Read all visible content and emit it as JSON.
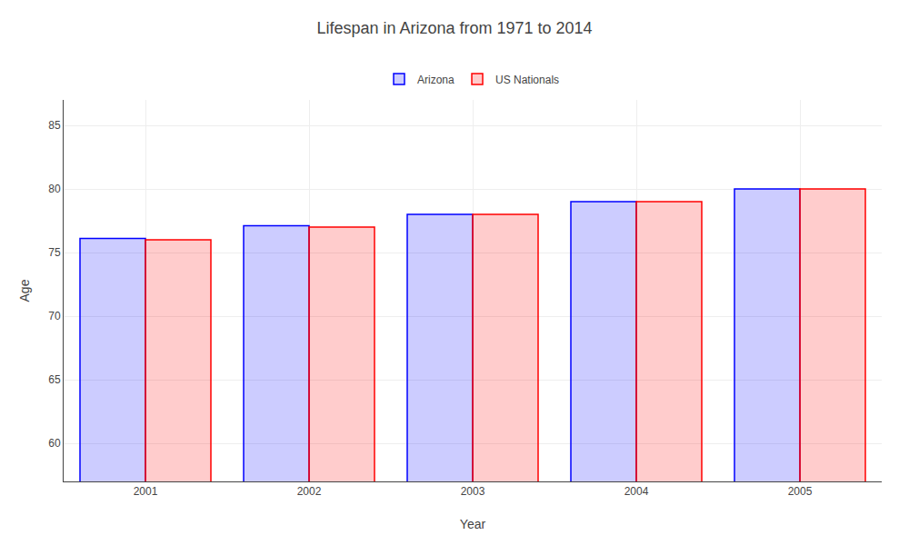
{
  "chart_data": {
    "type": "bar",
    "title": "Lifespan in Arizona from 1971 to 2014",
    "x_label": "Year",
    "y_label": "Age",
    "categories": [
      "2001",
      "2002",
      "2003",
      "2004",
      "2005"
    ],
    "series": [
      {
        "name": "Arizona",
        "color": "#0000ff",
        "values": [
          76.1,
          77.1,
          78.0,
          79.0,
          80.0
        ]
      },
      {
        "name": "US Nationals",
        "color": "#ff0000",
        "values": [
          76.0,
          77.0,
          78.0,
          79.0,
          80.0
        ]
      }
    ],
    "ylim": [
      57,
      87
    ],
    "yticks": [
      60,
      65,
      70,
      75,
      80,
      85
    ],
    "grid": true,
    "legend": "top"
  }
}
